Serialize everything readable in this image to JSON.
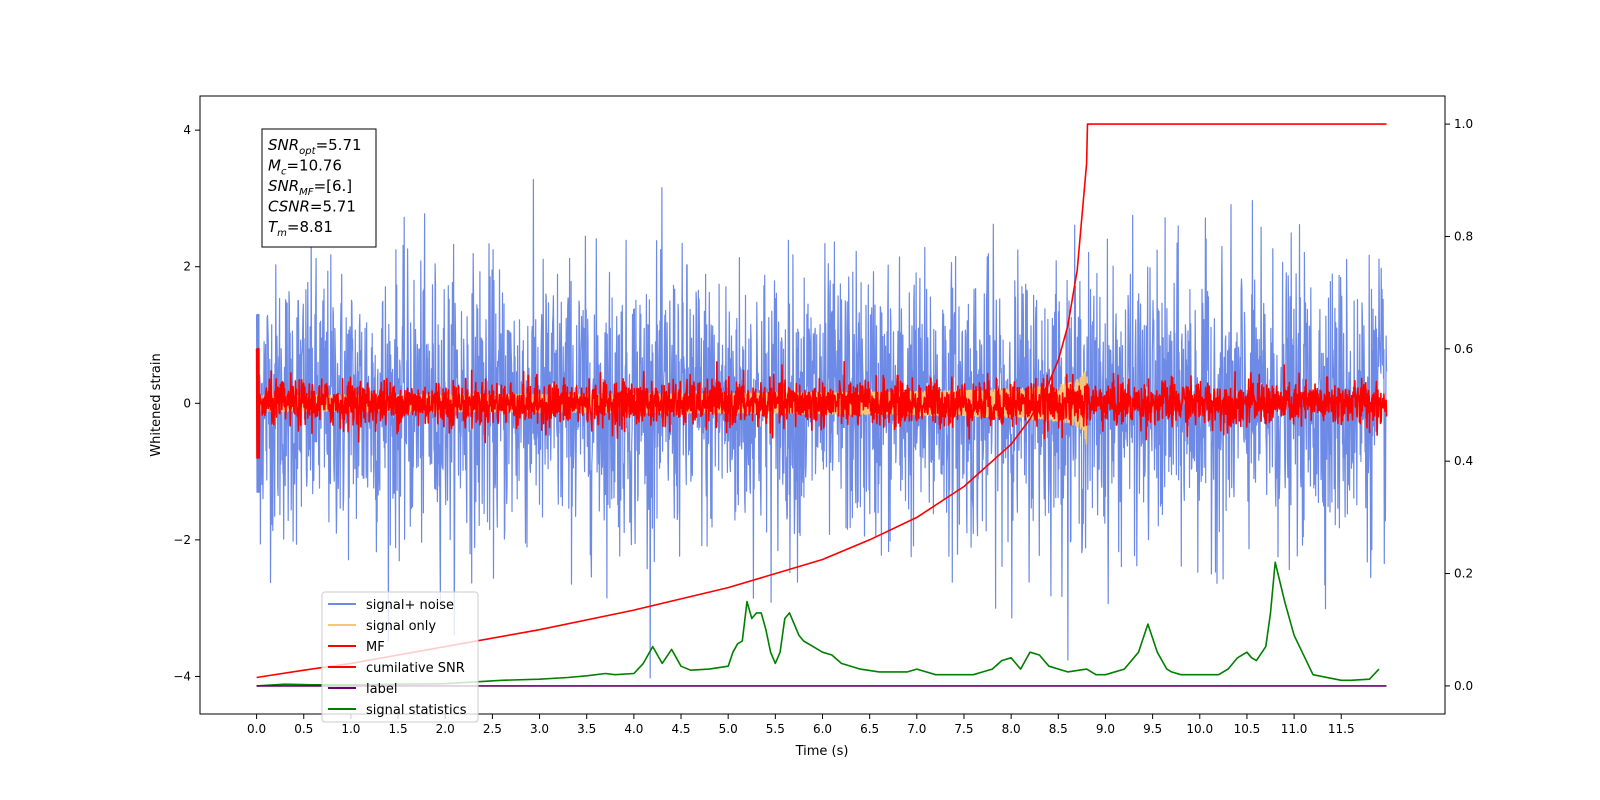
{
  "chart_data": {
    "type": "line",
    "xlabel": "Time (s)",
    "ylabel": "Whitened strain",
    "ylabel_right": "",
    "xlim": [
      -0.6,
      12.6
    ],
    "ylim": [
      -4.55,
      4.5
    ],
    "ylim_right": [
      -0.05,
      1.05
    ],
    "x_ticks": [
      0.0,
      0.5,
      1.0,
      1.5,
      2.0,
      2.5,
      3.0,
      3.5,
      4.0,
      4.5,
      5.0,
      5.5,
      6.0,
      6.5,
      7.0,
      7.5,
      8.0,
      8.5,
      9.0,
      9.5,
      10.0,
      10.5,
      11.0,
      11.5
    ],
    "x_tick_labels": [
      "0.0",
      "0.5",
      "1.0",
      "1.5",
      "2.0",
      "2.5",
      "3.0",
      "3.5",
      "4.0",
      "4.5",
      "5.0",
      "5.5",
      "6.0",
      "6.5",
      "7.0",
      "7.5",
      "8.0",
      "8.5",
      "9.0",
      "9.5",
      "10.0",
      "10.5",
      "11.0",
      "11.5"
    ],
    "y_ticks": [
      -4,
      -2,
      0,
      2,
      4
    ],
    "y_tick_labels": [
      "−4",
      "−2",
      "0",
      "2",
      "4"
    ],
    "y_right_ticks": [
      0.0,
      0.2,
      0.4,
      0.6,
      0.8,
      1.0
    ],
    "y_right_tick_labels": [
      "0.0",
      "0.2",
      "0.4",
      "0.6",
      "0.8",
      "1.0"
    ],
    "grid": false,
    "legend_position": "lower-left",
    "annotation": [
      {
        "label": "SNR",
        "sub": "opt",
        "value": "=5.71"
      },
      {
        "label": "M",
        "sub": "c",
        "value": "=10.76"
      },
      {
        "label": "SNR",
        "sub": "MF",
        "value": "=[6.]"
      },
      {
        "label": "CSNR",
        "sub": "",
        "value": "=5.71"
      },
      {
        "label": "T",
        "sub": "m",
        "value": "=8.81"
      }
    ],
    "series": [
      {
        "name": "signal+ noise",
        "color": "#6d8ae6",
        "axis": "left",
        "style": "noise",
        "amplitude_std": 1.0,
        "x_range": [
          0.0,
          11.98
        ]
      },
      {
        "name": "signal only",
        "color": "#f5c67a",
        "axis": "left",
        "style": "chirp",
        "merger_time": 8.81,
        "peak_amplitude": 1.0,
        "x_range": [
          0.0,
          8.81
        ]
      },
      {
        "name": "MF",
        "color": "#ff0000",
        "axis": "left",
        "style": "noise",
        "amplitude_std": 0.17,
        "x_range": [
          0.0,
          11.98
        ]
      },
      {
        "name": "cumilative SNR",
        "color": "#ff0000",
        "axis": "right",
        "x": [
          0.0,
          0.5,
          1.0,
          2.0,
          3.0,
          4.0,
          5.0,
          6.0,
          6.5,
          7.0,
          7.5,
          8.0,
          8.2,
          8.4,
          8.5,
          8.6,
          8.7,
          8.8,
          8.81,
          11.98
        ],
        "y": [
          0.015,
          0.028,
          0.04,
          0.07,
          0.1,
          0.135,
          0.175,
          0.225,
          0.26,
          0.3,
          0.355,
          0.43,
          0.475,
          0.54,
          0.58,
          0.64,
          0.74,
          0.93,
          1.0,
          1.0
        ]
      },
      {
        "name": "label",
        "color": "#6a006a",
        "axis": "right",
        "x": [
          0.0,
          11.98
        ],
        "y": [
          0.0,
          0.0
        ]
      },
      {
        "name": "signal statistics",
        "color": "#008000",
        "axis": "right",
        "x": [
          0.0,
          0.3,
          0.6,
          1.0,
          1.5,
          2.0,
          2.4,
          2.6,
          3.0,
          3.3,
          3.5,
          3.7,
          3.8,
          4.0,
          4.1,
          4.2,
          4.3,
          4.4,
          4.5,
          4.6,
          4.8,
          5.0,
          5.05,
          5.1,
          5.15,
          5.2,
          5.25,
          5.3,
          5.35,
          5.4,
          5.45,
          5.5,
          5.55,
          5.6,
          5.65,
          5.7,
          5.75,
          5.8,
          5.9,
          6.0,
          6.1,
          6.2,
          6.4,
          6.6,
          6.8,
          6.9,
          7.0,
          7.2,
          7.4,
          7.6,
          7.7,
          7.8,
          7.9,
          8.0,
          8.1,
          8.2,
          8.3,
          8.4,
          8.6,
          8.8,
          8.9,
          9.0,
          9.2,
          9.35,
          9.45,
          9.55,
          9.65,
          9.7,
          9.8,
          10.0,
          10.2,
          10.3,
          10.4,
          10.5,
          10.55,
          10.6,
          10.7,
          10.75,
          10.8,
          10.9,
          11.0,
          11.2,
          11.5,
          11.6,
          11.8,
          11.9
        ],
        "y": [
          0.0,
          0.003,
          0.002,
          0.002,
          0.003,
          0.004,
          0.008,
          0.01,
          0.012,
          0.015,
          0.018,
          0.022,
          0.02,
          0.022,
          0.04,
          0.07,
          0.04,
          0.065,
          0.035,
          0.028,
          0.03,
          0.035,
          0.06,
          0.075,
          0.08,
          0.15,
          0.12,
          0.13,
          0.13,
          0.1,
          0.06,
          0.04,
          0.06,
          0.12,
          0.13,
          0.11,
          0.09,
          0.08,
          0.07,
          0.06,
          0.055,
          0.04,
          0.03,
          0.025,
          0.025,
          0.025,
          0.03,
          0.02,
          0.02,
          0.02,
          0.025,
          0.03,
          0.045,
          0.05,
          0.03,
          0.06,
          0.055,
          0.035,
          0.025,
          0.03,
          0.02,
          0.02,
          0.03,
          0.06,
          0.11,
          0.06,
          0.03,
          0.025,
          0.02,
          0.02,
          0.02,
          0.03,
          0.05,
          0.06,
          0.05,
          0.045,
          0.07,
          0.13,
          0.22,
          0.15,
          0.09,
          0.02,
          0.01,
          0.01,
          0.012,
          0.03
        ]
      }
    ]
  }
}
